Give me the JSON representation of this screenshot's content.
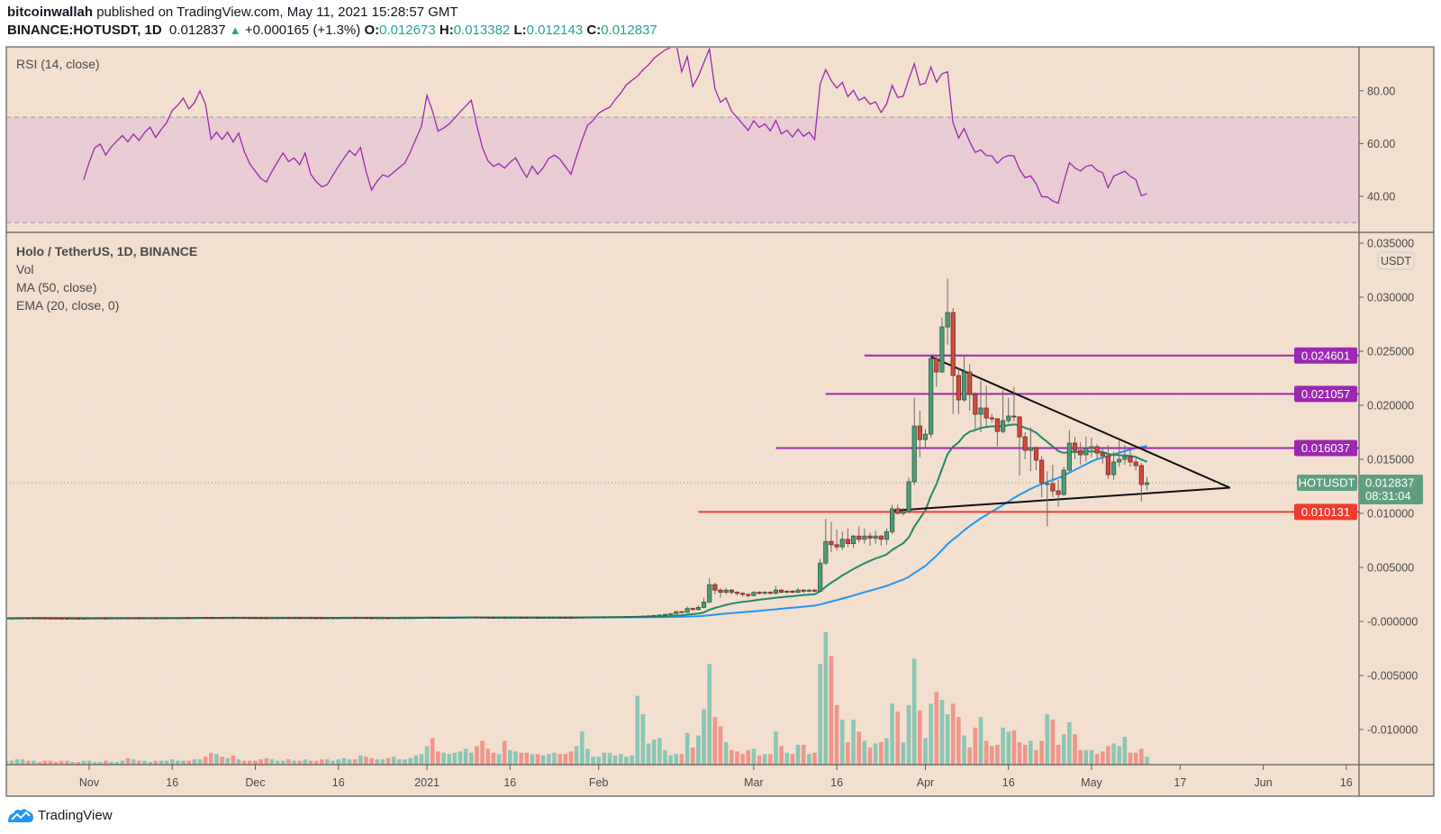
{
  "header": {
    "author": "bitcoinwallah",
    "published": "published on TradingView.com, May 11, 2021 15:28:57 GMT",
    "symbol": "BINANCE:HOTUSDT, 1D",
    "last": "0.012837",
    "change_icon": "triangle-up-icon",
    "change": "+0.000165 (+1.3%)",
    "o_label": "O:",
    "o": "0.012673",
    "h_label": "H:",
    "h": "0.013382",
    "l_label": "L:",
    "l": "0.012143",
    "c_label": "C:",
    "c": "0.012837"
  },
  "rsi_pane": {
    "title": "RSI (14, close)",
    "ticks": [
      {
        "value": 80,
        "label": "80.00"
      },
      {
        "value": 60,
        "label": "60.00"
      },
      {
        "value": 40,
        "label": "40.00"
      }
    ],
    "band": [
      30,
      70
    ]
  },
  "main_pane": {
    "legend": [
      "Holo / TetherUS, 1D, BINANCE",
      "Vol",
      "MA (50, close)",
      "EMA (20, close, 0)"
    ],
    "currency": "USDT",
    "price_ticks": [
      {
        "value": 0.035,
        "label": "0.035000"
      },
      {
        "value": 0.03,
        "label": "0.030000"
      },
      {
        "value": 0.025,
        "label": "0.025000"
      },
      {
        "value": 0.02,
        "label": "0.020000"
      },
      {
        "value": 0.015,
        "label": "0.015000"
      },
      {
        "value": 0.01,
        "label": "0.010000"
      },
      {
        "value": 0.005,
        "label": "0.005000"
      },
      {
        "value": 0.0,
        "label": "-0.000000"
      },
      {
        "value": -0.005,
        "label": "-0.005000"
      },
      {
        "value": -0.01,
        "label": "-0.010000"
      }
    ],
    "current_price": {
      "ticker": "HOTUSDT",
      "value": 0.012837,
      "label": "0.012837",
      "countdown": "08:31:04"
    },
    "levels": [
      {
        "value": 0.024601,
        "label": "0.024601",
        "from": "2021-03-21",
        "color": "#9c27b0"
      },
      {
        "value": 0.021057,
        "label": "0.021057",
        "from": "2021-03-14",
        "color": "#9c27b0"
      },
      {
        "value": 0.016037,
        "label": "0.016037",
        "from": "2021-03-05",
        "color": "#9c27b0"
      },
      {
        "value": 0.010131,
        "label": "0.010131",
        "from": "2021-02-19",
        "color": "#f23b2f"
      }
    ],
    "trendlines": [
      {
        "from": {
          "date": "2021-04-02",
          "price": 0.0245
        },
        "to": {
          "date": "2021-05-26",
          "price": 0.01237
        }
      },
      {
        "from": {
          "date": "2021-03-26",
          "price": 0.01025
        },
        "to": {
          "date": "2021-05-26",
          "price": 0.01237
        }
      }
    ]
  },
  "time_axis": {
    "ticks": [
      {
        "date": "2020-11-01",
        "label": "Nov"
      },
      {
        "date": "2020-11-16",
        "label": "16"
      },
      {
        "date": "2020-12-01",
        "label": "Dec"
      },
      {
        "date": "2020-12-16",
        "label": "16"
      },
      {
        "date": "2021-01-01",
        "label": "2021"
      },
      {
        "date": "2021-01-16",
        "label": "16"
      },
      {
        "date": "2021-02-01",
        "label": "Feb"
      },
      {
        "date": "2021-03-01",
        "label": "Mar"
      },
      {
        "date": "2021-03-16",
        "label": "16"
      },
      {
        "date": "2021-04-01",
        "label": "Apr"
      },
      {
        "date": "2021-04-16",
        "label": "16"
      },
      {
        "date": "2021-05-01",
        "label": "May"
      },
      {
        "date": "2021-05-17",
        "label": "17"
      },
      {
        "date": "2021-06-01",
        "label": "Jun"
      },
      {
        "date": "2021-06-16",
        "label": "16"
      }
    ]
  },
  "footer": {
    "brand": "TradingView",
    "logo_icon": "tradingview-logo-icon"
  },
  "colors": {
    "background": "#f2dfce",
    "up": "#4f9a76",
    "down": "#d1493f",
    "volume_up": "#8cc5b3",
    "volume_down": "#f0968b",
    "ema": "#1e8a68",
    "ma": "#2196f3",
    "rsi": "#9c27b0",
    "rsi_band": "#e8c8d4",
    "teal_text": "#22a393"
  },
  "chart_data": {
    "type": "candlestick",
    "symbol": "HOTUSDT",
    "interval": "1D",
    "first_date": "2020-10-17",
    "early_closes": [
      0.0003,
      0.000305,
      0.000312,
      0.000318,
      0.000315,
      0.00032,
      0.000316,
      0.00031,
      0.000306,
      0.0003,
      0.000298,
      0.000296,
      0.000297,
      0.000295,
      0.000296,
      0.000303,
      0.00031,
      0.000312,
      0.000308,
      0.000312,
      0.000315,
      0.000318,
      0.000316,
      0.00032,
      0.000318,
      0.000322,
      0.000325,
      0.000322,
      0.000326,
      0.00033,
      0.000338,
      0.000342,
      0.000348,
      0.000345,
      0.00035,
      0.000362,
      0.000358,
      0.000345,
      0.00035,
      0.000347,
      0.000352,
      0.000348,
      0.000354,
      0.000346,
      0.00034,
      0.000336,
      0.000332,
      0.00033,
      0.000335,
      0.00034,
      0.000345,
      0.000341,
      0.000343,
      0.00034,
      0.000346,
      0.000336,
      0.000332,
      0.000329,
      0.00033,
      0.000334,
      0.000338,
      0.000342,
      0.000346,
      0.000344,
      0.000348,
      0.000338,
      0.000328,
      0.000332,
      0.000335,
      0.000334,
      0.000336,
      0.000338,
      0.00034,
      0.000345,
      0.000352,
      0.00036,
      0.000392,
      0.000385,
      0.000375,
      0.000378,
      0.000382,
      0.000388,
      0.000395,
      0.000402,
      0.00041,
      0.000398,
      0.000385,
      0.000376,
      0.000372,
      0.000374,
      0.000371,
      0.000375,
      0.000378,
      0.000372,
      0.000366,
      0.000373,
      0.000368,
      0.000372,
      0.000378,
      0.00038,
      0.000378,
      0.000374,
      0.00037,
      0.00038,
      0.000392,
      0.000405,
      0.00041,
      0.000418,
      0.000422,
      0.000425,
      0.000435,
      0.000445,
      0.00046,
      0.00047,
      0.00048,
      0.0005,
      0.00052,
      0.00056,
      0.0006,
      0.00066,
      0.00072
    ],
    "ohlc_columns": [
      "open",
      "high",
      "low",
      "close"
    ],
    "ohlc_from": "2021-02-15",
    "ohlc": [
      [
        0.00072,
        0.001,
        0.0007,
        0.0009
      ],
      [
        0.0009,
        0.001,
        0.0008,
        0.00085
      ],
      [
        0.00085,
        0.0014,
        0.0008,
        0.0012
      ],
      [
        0.0012,
        0.0013,
        0.001,
        0.0011
      ],
      [
        0.0011,
        0.0015,
        0.001,
        0.0013
      ],
      [
        0.0013,
        0.0022,
        0.0012,
        0.0018
      ],
      [
        0.0018,
        0.004,
        0.0017,
        0.0034
      ],
      [
        0.0034,
        0.0036,
        0.0025,
        0.0029
      ],
      [
        0.0029,
        0.0031,
        0.0022,
        0.0027
      ],
      [
        0.0027,
        0.0031,
        0.0025,
        0.0029
      ],
      [
        0.0029,
        0.003,
        0.0025,
        0.0027
      ],
      [
        0.0027,
        0.0028,
        0.0024,
        0.0026
      ],
      [
        0.0026,
        0.0027,
        0.0023,
        0.0025
      ],
      [
        0.0025,
        0.0026,
        0.0022,
        0.0024
      ],
      [
        0.0024,
        0.0028,
        0.0023,
        0.0027
      ],
      [
        0.0027,
        0.0028,
        0.0025,
        0.0026
      ],
      [
        0.0026,
        0.0028,
        0.0025,
        0.0027
      ],
      [
        0.0027,
        0.0028,
        0.0025,
        0.0026
      ],
      [
        0.0026,
        0.0033,
        0.0025,
        0.0029
      ],
      [
        0.0029,
        0.003,
        0.0026,
        0.0027
      ],
      [
        0.0027,
        0.0029,
        0.0026,
        0.0028
      ],
      [
        0.0028,
        0.0029,
        0.0026,
        0.0027
      ],
      [
        0.0027,
        0.0031,
        0.0026,
        0.0029
      ],
      [
        0.0029,
        0.003,
        0.0026,
        0.0028
      ],
      [
        0.0028,
        0.003,
        0.0027,
        0.0029
      ],
      [
        0.0029,
        0.003,
        0.0027,
        0.0028
      ],
      [
        0.0028,
        0.0058,
        0.0027,
        0.0054
      ],
      [
        0.0054,
        0.0095,
        0.0052,
        0.0074
      ],
      [
        0.0074,
        0.0092,
        0.0064,
        0.0071
      ],
      [
        0.0071,
        0.0085,
        0.0066,
        0.0069
      ],
      [
        0.0069,
        0.0083,
        0.0066,
        0.0076
      ],
      [
        0.0076,
        0.0086,
        0.0069,
        0.0072
      ],
      [
        0.0072,
        0.008,
        0.0068,
        0.0079
      ],
      [
        0.0079,
        0.0088,
        0.0073,
        0.0076
      ],
      [
        0.0076,
        0.0086,
        0.0072,
        0.0079
      ],
      [
        0.0079,
        0.0082,
        0.007,
        0.0077
      ],
      [
        0.0077,
        0.0084,
        0.0072,
        0.0079
      ],
      [
        0.0079,
        0.008,
        0.007,
        0.0076
      ],
      [
        0.0076,
        0.0086,
        0.0071,
        0.0083
      ],
      [
        0.0083,
        0.0108,
        0.0081,
        0.01042
      ],
      [
        0.01042,
        0.0108,
        0.0099,
        0.01
      ],
      [
        0.01,
        0.0105,
        0.0098,
        0.01017
      ],
      [
        0.01017,
        0.0133,
        0.01,
        0.01292
      ],
      [
        0.01292,
        0.0207,
        0.0126,
        0.01808
      ],
      [
        0.01808,
        0.0195,
        0.0152,
        0.01683
      ],
      [
        0.01683,
        0.0178,
        0.016,
        0.01733
      ],
      [
        0.01733,
        0.0245,
        0.017,
        0.02433
      ],
      [
        0.02433,
        0.0246,
        0.0217,
        0.02308
      ],
      [
        0.02308,
        0.0281,
        0.023,
        0.02725
      ],
      [
        0.02725,
        0.0317,
        0.0256,
        0.02858
      ],
      [
        0.02858,
        0.029,
        0.0192,
        0.02275
      ],
      [
        0.02275,
        0.0235,
        0.0192,
        0.0205
      ],
      [
        0.0205,
        0.0247,
        0.0203,
        0.02308
      ],
      [
        0.02308,
        0.0238,
        0.0195,
        0.021
      ],
      [
        0.021,
        0.0212,
        0.0178,
        0.01917
      ],
      [
        0.01917,
        0.0223,
        0.0175,
        0.01975
      ],
      [
        0.01975,
        0.0218,
        0.018,
        0.01883
      ],
      [
        0.01883,
        0.0192,
        0.0184,
        0.01875
      ],
      [
        0.01875,
        0.0188,
        0.0162,
        0.01758
      ],
      [
        0.01758,
        0.0214,
        0.0174,
        0.01858
      ],
      [
        0.01858,
        0.0207,
        0.0183,
        0.019
      ],
      [
        0.019,
        0.0217,
        0.0185,
        0.01892
      ],
      [
        0.01892,
        0.019,
        0.0135,
        0.01708
      ],
      [
        0.01708,
        0.0175,
        0.015,
        0.01583
      ],
      [
        0.01583,
        0.018,
        0.0139,
        0.01608
      ],
      [
        0.01608,
        0.0162,
        0.014,
        0.01492
      ],
      [
        0.01492,
        0.0153,
        0.0115,
        0.0128
      ],
      [
        0.01272,
        0.0139,
        0.0088,
        0.01275
      ],
      [
        0.01275,
        0.0145,
        0.0115,
        0.01208
      ],
      [
        0.01208,
        0.0131,
        0.0106,
        0.01175
      ],
      [
        0.01175,
        0.0143,
        0.0116,
        0.014
      ],
      [
        0.014,
        0.0177,
        0.0138,
        0.0165
      ],
      [
        0.0165,
        0.0171,
        0.015,
        0.01583
      ],
      [
        0.01583,
        0.0166,
        0.0145,
        0.01542
      ],
      [
        0.01542,
        0.0171,
        0.0148,
        0.016
      ],
      [
        0.016,
        0.017,
        0.0152,
        0.01617
      ],
      [
        0.01617,
        0.0164,
        0.015,
        0.01558
      ],
      [
        0.01558,
        0.016,
        0.0146,
        0.01533
      ],
      [
        0.01533,
        0.0163,
        0.0132,
        0.01358
      ],
      [
        0.01358,
        0.0157,
        0.0131,
        0.01475
      ],
      [
        0.01475,
        0.0168,
        0.0143,
        0.015
      ],
      [
        0.015,
        0.0163,
        0.0145,
        0.01525
      ],
      [
        0.01525,
        0.016,
        0.0143,
        0.01475
      ],
      [
        0.01475,
        0.0152,
        0.014,
        0.01442
      ],
      [
        0.01442,
        0.0147,
        0.0111,
        0.012672
      ],
      [
        0.012673,
        0.013382,
        0.012143,
        0.012837
      ]
    ],
    "volume_unit": "relative (peak = 100)",
    "volume": [
      3,
      3,
      4,
      4,
      3,
      3,
      2,
      3,
      3,
      2,
      3,
      3,
      2,
      2,
      3,
      3,
      2,
      2,
      3,
      2,
      2,
      3,
      5,
      4,
      3,
      3,
      2,
      3,
      3,
      3,
      4,
      3,
      3,
      3,
      4,
      4,
      6,
      9,
      8,
      6,
      5,
      7,
      4,
      3,
      3,
      3,
      4,
      5,
      4,
      3,
      3,
      4,
      3,
      3,
      4,
      3,
      3,
      4,
      4,
      3,
      4,
      5,
      4,
      4,
      7,
      6,
      5,
      4,
      4,
      5,
      6,
      4,
      4,
      5,
      7,
      8,
      14,
      20,
      10,
      9,
      8,
      9,
      10,
      12,
      9,
      14,
      18,
      12,
      9,
      8,
      18,
      11,
      10,
      9,
      9,
      8,
      8,
      7,
      8,
      9,
      8,
      8,
      10,
      14,
      25,
      12,
      6,
      6,
      9,
      9,
      7,
      8,
      6,
      7,
      52,
      38,
      16,
      19,
      20,
      11,
      7,
      8,
      8,
      24,
      13,
      22,
      42,
      76,
      36,
      29,
      17,
      11,
      10,
      8,
      11,
      12,
      7,
      8,
      8,
      25,
      14,
      9,
      8,
      15,
      15,
      8,
      9,
      76,
      100,
      82,
      45,
      34,
      17,
      34,
      25,
      18,
      13,
      16,
      17,
      20,
      46,
      40,
      17,
      45,
      80,
      41,
      20,
      46,
      55,
      49,
      38,
      46,
      36,
      22,
      13,
      28,
      36,
      18,
      14,
      15,
      28,
      25,
      26,
      17,
      15,
      18,
      11,
      18,
      38,
      34,
      15,
      23,
      32,
      23,
      11,
      11,
      11,
      8,
      10,
      14,
      16,
      14,
      21,
      9,
      9,
      12,
      6
    ],
    "indicators": [
      {
        "name": "MA (50, close)",
        "type": "sma",
        "length": 50
      },
      {
        "name": "EMA (20, close, 0)",
        "type": "ema",
        "length": 20
      },
      {
        "name": "RSI (14, close)",
        "type": "rsi",
        "length": 14
      }
    ],
    "y_axis": {
      "ylim": [
        -0.0135,
        0.0358
      ],
      "scale": "linear"
    },
    "rsi_axis": {
      "ylim": [
        28,
        92
      ]
    },
    "grid": true
  }
}
